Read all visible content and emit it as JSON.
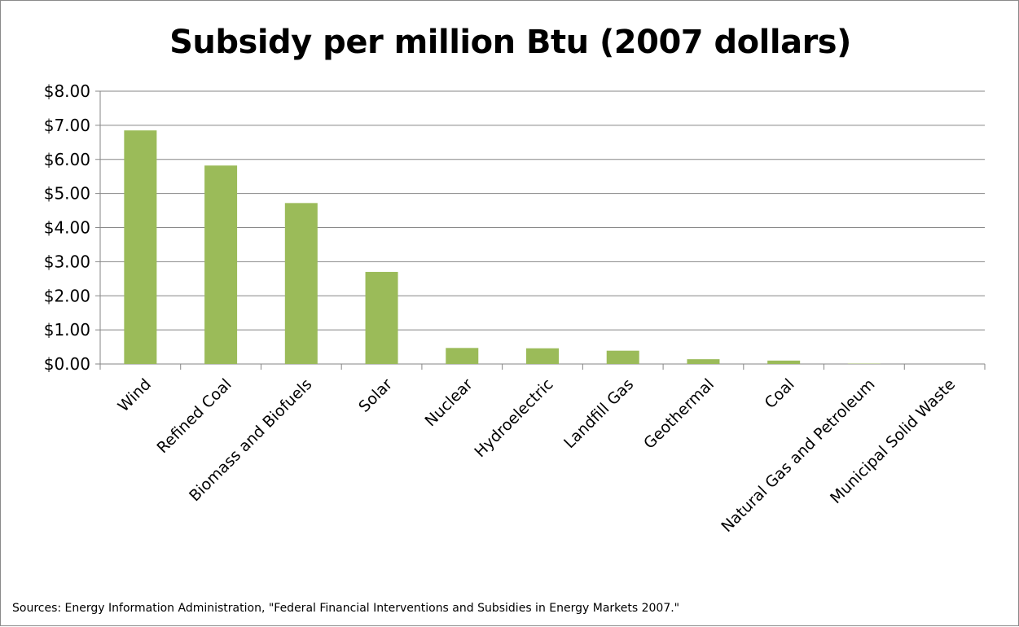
{
  "chart_data": {
    "type": "bar",
    "title": "Subsidy per million Btu (2007 dollars)",
    "xlabel": "",
    "ylabel": "",
    "categories": [
      "Wind",
      "Refined Coal",
      "Biomass and Biofuels",
      "Solar",
      "Nuclear",
      "Hydroelectric",
      "Landfill Gas",
      "Geothermal",
      "Coal",
      "Natural Gas and Petroleum",
      "Municipal Solid Waste"
    ],
    "values": [
      6.85,
      5.82,
      4.72,
      2.7,
      0.47,
      0.46,
      0.39,
      0.14,
      0.1,
      0.01,
      0.0
    ],
    "ylim": [
      0,
      8
    ],
    "yticks": [
      "$0.00",
      "$1.00",
      "$2.00",
      "$3.00",
      "$4.00",
      "$5.00",
      "$6.00",
      "$7.00",
      "$8.00"
    ],
    "grid": true,
    "bar_color": "#9bbb59",
    "source": "Sources: Energy Information  Administration,  \"Federal Financial Interventions and Subsidies in Energy Markets 2007.\""
  }
}
